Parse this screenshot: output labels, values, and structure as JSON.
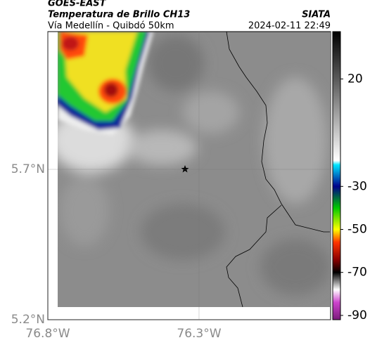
{
  "chart_data": {
    "type": "map",
    "title": "GOES-EAST",
    "subtitle": "Temperatura de Brillo CH13",
    "source": "SIATA",
    "region": "Vía Medellín - Quibdó 50km",
    "timestamp": "2024-02-11 22:49",
    "xlim": [
      -76.8,
      -75.865
    ],
    "ylim": [
      5.2,
      6.158
    ],
    "xticks": [
      {
        "value": -76.8,
        "label": "76.8°W"
      },
      {
        "value": -76.3,
        "label": "76.3°W"
      }
    ],
    "yticks": [
      {
        "value": 5.7,
        "label": "5.7°N"
      },
      {
        "value": 5.2,
        "label": "5.2°N"
      }
    ],
    "grid": true,
    "colorbar": {
      "lim": [
        -92,
        42
      ],
      "ticks": [
        20,
        -30,
        -50,
        -70,
        -90
      ],
      "stops": [
        {
          "value": 42,
          "color": "#000000"
        },
        {
          "value": 20,
          "color": "#5a5a5a"
        },
        {
          "value": -18,
          "color": "#ffffff"
        },
        {
          "value": -20,
          "color": "#00e5ff"
        },
        {
          "value": -30,
          "color": "#00008b"
        },
        {
          "value": -40,
          "color": "#00c800"
        },
        {
          "value": -50,
          "color": "#ffff00"
        },
        {
          "value": -56,
          "color": "#ff3300"
        },
        {
          "value": -64,
          "color": "#8b0000"
        },
        {
          "value": -70,
          "color": "#000000"
        },
        {
          "value": -78,
          "color": "#ffffff"
        },
        {
          "value": -84,
          "color": "#cc44cc"
        },
        {
          "value": -92,
          "color": "#7a1a7a"
        }
      ]
    }
  }
}
